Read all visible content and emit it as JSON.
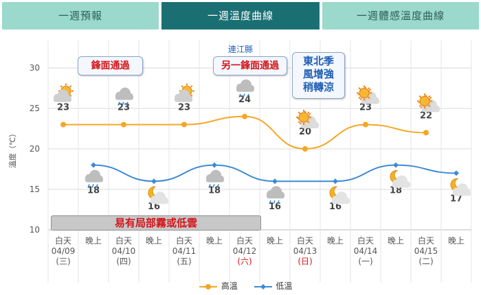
{
  "tabs": [
    {
      "label": "一週預報",
      "active": false
    },
    {
      "label": "一週溫度曲線",
      "active": true
    },
    {
      "label": "一週體感溫度曲線",
      "active": false
    }
  ],
  "callouts": [
    {
      "text": "鋒面通過",
      "style": "red"
    },
    {
      "text": "另一鋒面通過",
      "style": "red",
      "label": "連江縣"
    },
    {
      "text": "東北季\n風增強\n稍轉涼",
      "style": "blue"
    }
  ],
  "banner": "易有局部霧或低雲",
  "colors": {
    "high": "#f5a623",
    "low": "#3d8ad6",
    "grid": "#d9d9d9",
    "tab_active": "#1a6f73",
    "tab_inactive": "#9ad9cc",
    "red_text": "#d4141a"
  },
  "chart_data": {
    "type": "line",
    "ylabel": "溫度（℃）",
    "ylim": [
      10,
      30
    ],
    "yticks": [
      "10",
      "15",
      "20",
      "25",
      "30"
    ],
    "x_periods": [
      "白天",
      "晚上",
      "白天",
      "晚上",
      "白天",
      "晚上",
      "白天",
      "晚上",
      "白天",
      "晚上",
      "白天",
      "晚上",
      "白天",
      "晚上"
    ],
    "days": [
      {
        "date": "04/09",
        "weekday": "(三)",
        "weekend": false
      },
      {
        "date": "04/10",
        "weekday": "(四)",
        "weekend": false
      },
      {
        "date": "04/11",
        "weekday": "(五)",
        "weekend": false
      },
      {
        "date": "04/12",
        "weekday": "(六)",
        "weekend": true
      },
      {
        "date": "04/13",
        "weekday": "(日)",
        "weekend": true
      },
      {
        "date": "04/14",
        "weekday": "(一)",
        "weekend": false
      },
      {
        "date": "04/15",
        "weekday": "(二)",
        "weekend": false
      }
    ],
    "series": [
      {
        "name": "高溫",
        "values": [
          23,
          23,
          23,
          24,
          20,
          23,
          22
        ],
        "icons": [
          "partly-cloudy-sun-icon",
          "cloudy-rain-icon",
          "partly-cloudy-sun-icon",
          "cloudy-rain-icon",
          "sun-icon",
          "sun-icon",
          "sun-icon"
        ]
      },
      {
        "name": "低溫",
        "values": [
          18,
          16,
          18,
          16,
          16,
          18,
          17
        ],
        "icons": [
          "cloudy-rain-icon",
          "moon-icon",
          "cloudy-rain-icon",
          "cloudy-rain-icon",
          "moon-icon",
          "moon-icon",
          "moon-icon"
        ]
      }
    ],
    "legend_position": "bottom",
    "grid": true
  }
}
